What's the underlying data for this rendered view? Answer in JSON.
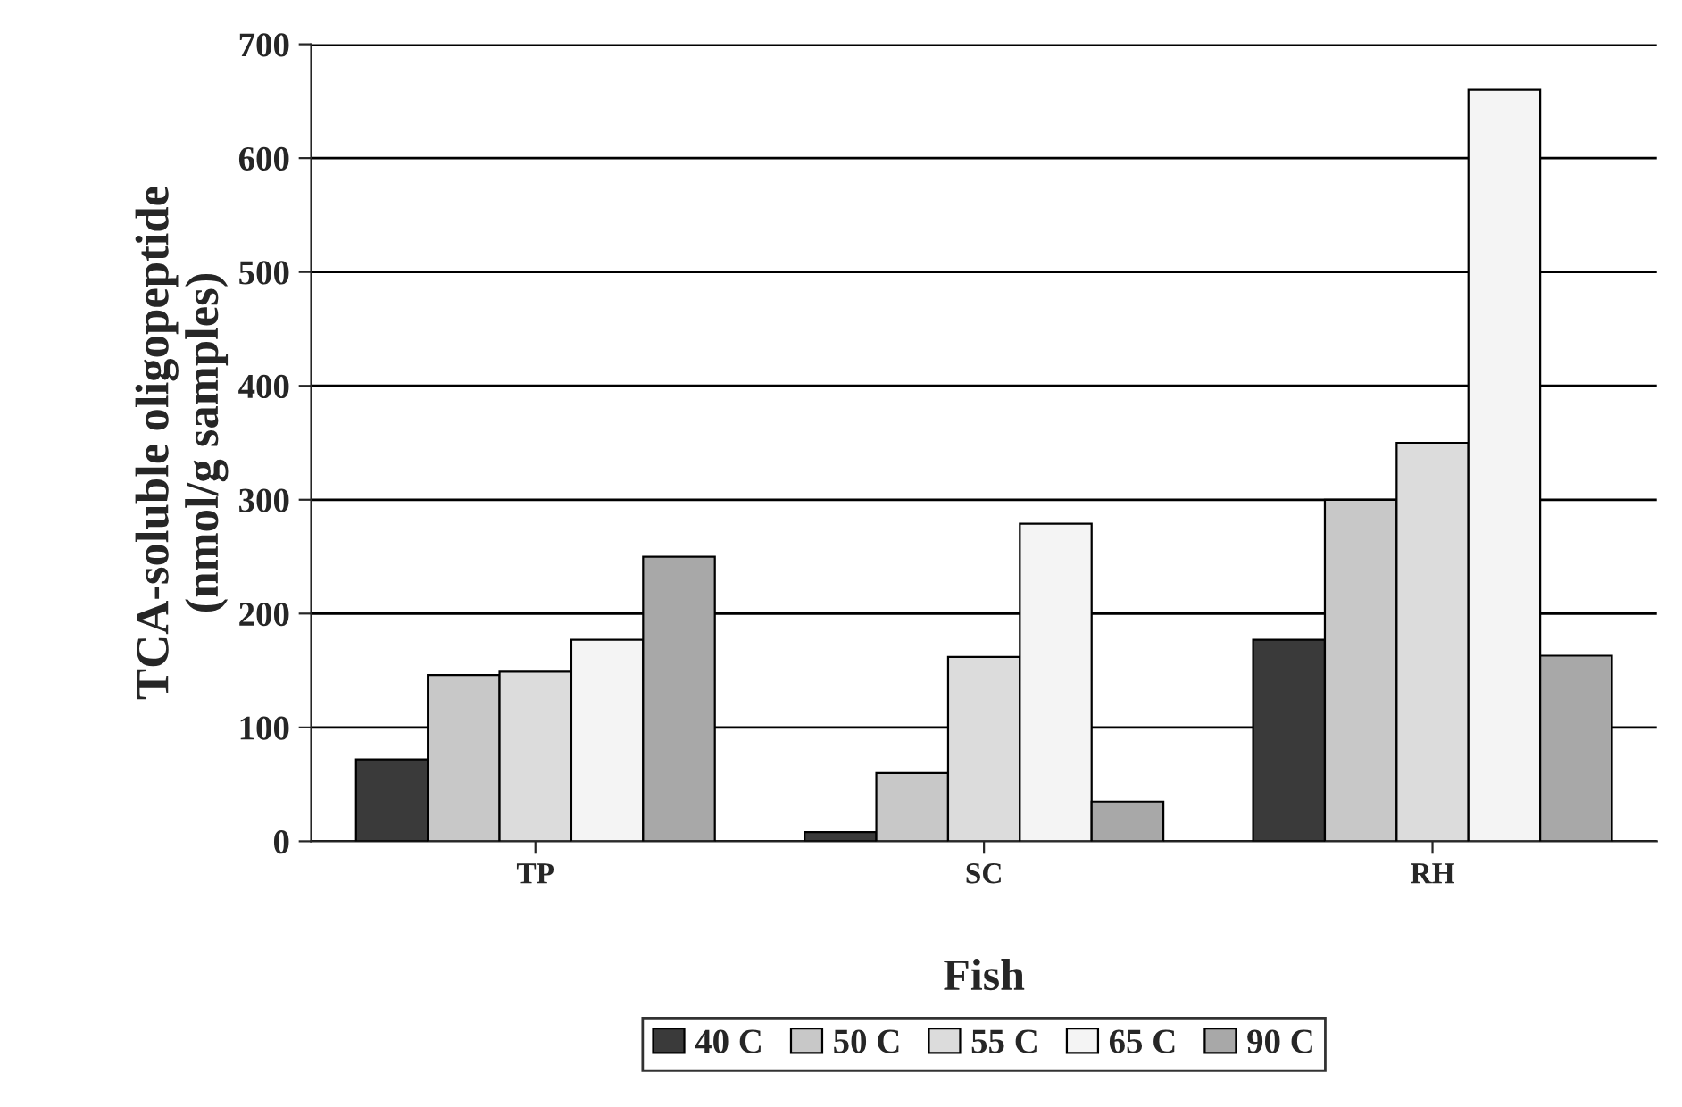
{
  "chart_data": {
    "type": "bar",
    "xlabel": "Fish",
    "ylabel": "TCA-soluble oligopeptide\n(nmol/g samples)",
    "categories": [
      "TP",
      "SC",
      "RH"
    ],
    "series": [
      {
        "name": "40 C",
        "color": "#3a3a3a",
        "values": [
          72,
          8,
          177
        ]
      },
      {
        "name": "50 C",
        "color": "#c8c8c8",
        "values": [
          146,
          60,
          300
        ]
      },
      {
        "name": "55 C",
        "color": "#dcdcdc",
        "values": [
          149,
          162,
          350
        ]
      },
      {
        "name": "65 C",
        "color": "#f4f4f4",
        "values": [
          177,
          279,
          660
        ]
      },
      {
        "name": "90 C",
        "color": "#a8a8a8",
        "values": [
          250,
          35,
          163
        ]
      }
    ],
    "ylim": [
      0,
      700
    ],
    "yticks": [
      0,
      100,
      200,
      300,
      400,
      500,
      600,
      700
    ],
    "grid": "y",
    "legend": "bottom"
  }
}
